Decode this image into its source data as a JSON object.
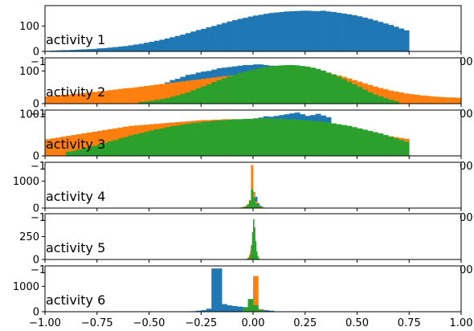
{
  "chart_data": [
    {
      "type": "bar",
      "label": "activity 1",
      "xlim": [
        -1.0,
        1.0
      ],
      "ylim": [
        0,
        180
      ],
      "yticks": [
        "0",
        "100"
      ],
      "overflow_text": {
        "left": "−1",
        "right": "00"
      },
      "bin_width": 0.025,
      "series": [
        {
          "color": "#1f77b4",
          "start": -1.0,
          "values": [
            2,
            3,
            4,
            5,
            5,
            6,
            7,
            8,
            9,
            10,
            12,
            13,
            15,
            17,
            19,
            21,
            24,
            27,
            30,
            34,
            38,
            42,
            46,
            51,
            56,
            61,
            66,
            72,
            78,
            84,
            89,
            95,
            100,
            106,
            112,
            118,
            123,
            128,
            132,
            137,
            141,
            144,
            148,
            151,
            153,
            155,
            157,
            158,
            159,
            160,
            160,
            159,
            158,
            160,
            157,
            155,
            152,
            149,
            146,
            142,
            138,
            133,
            128,
            122,
            116,
            110,
            104,
            97,
            90,
            83
          ]
        }
      ]
    },
    {
      "type": "bar",
      "label": "activity 2",
      "xlim": [
        -1.0,
        1.0
      ],
      "ylim": [
        0,
        140
      ],
      "yticks": [
        "0",
        "100"
      ],
      "overflow_text": {
        "left": "−1",
        "right": "00"
      },
      "bin_width": 0.025,
      "series": [
        {
          "color": "#1f77b4",
          "start": -0.45,
          "values": [
            60,
            65,
            72,
            76,
            82,
            88,
            90,
            95,
            98,
            100,
            104,
            108,
            110,
            112,
            114,
            116,
            118,
            118,
            120,
            120,
            118,
            116,
            114,
            112,
            110,
            106,
            102,
            96,
            90,
            84,
            78,
            72,
            66,
            60,
            55,
            50
          ]
        },
        {
          "color": "#ff7f0e",
          "start": -1.0,
          "values": [
            22,
            24,
            25,
            27,
            28,
            30,
            31,
            33,
            34,
            36,
            38,
            39,
            41,
            43,
            45,
            47,
            48,
            50,
            52,
            54,
            56,
            58,
            60,
            62,
            64,
            66,
            68,
            70,
            72,
            74,
            76,
            78,
            80,
            82,
            84,
            86,
            88,
            90,
            92,
            94,
            96,
            98,
            100,
            102,
            104,
            105,
            106,
            106,
            106,
            105,
            104,
            102,
            100,
            97,
            94,
            90,
            86,
            82,
            77,
            72,
            67,
            62,
            57,
            52,
            48,
            44,
            40,
            37,
            34,
            31,
            29,
            27,
            25,
            24,
            22,
            21,
            20,
            19,
            19,
            18
          ]
        },
        {
          "color": "#2ca02c",
          "start": -0.55,
          "values": [
            5,
            7,
            9,
            11,
            14,
            17,
            21,
            25,
            30,
            35,
            41,
            47,
            53,
            59,
            66,
            72,
            78,
            84,
            89,
            94,
            98,
            102,
            106,
            109,
            112,
            114,
            116,
            117,
            118,
            118,
            117,
            115,
            113,
            110,
            106,
            101,
            95,
            89,
            82,
            75,
            67,
            59,
            51,
            43,
            35,
            28,
            22,
            17,
            12,
            8
          ]
        }
      ]
    },
    {
      "type": "bar",
      "label": "activity 3",
      "xlim": [
        -1.0,
        1.0
      ],
      "ylim": [
        0,
        110
      ],
      "yticks": [
        "0",
        "100"
      ],
      "overflow_text": {
        "left": "−1",
        "right": "00"
      },
      "bin_width": 0.025,
      "series": [
        {
          "color": "#1f77b4",
          "start": 0.0,
          "values": [
            90,
            92,
            95,
            94,
            96,
            98,
            100,
            102,
            104,
            100,
            96,
            98,
            101,
            97,
            93
          ]
        },
        {
          "color": "#ff7f0e",
          "start": -1.0,
          "values": [
            40,
            42,
            44,
            46,
            48,
            50,
            52,
            54,
            56,
            58,
            60,
            62,
            64,
            66,
            68,
            70,
            72,
            73,
            74,
            75,
            76,
            77,
            78,
            79,
            80,
            81,
            82,
            83,
            84,
            85,
            86,
            86,
            87,
            87,
            88,
            88,
            88,
            88,
            88,
            88,
            87,
            87,
            86,
            86,
            85,
            84,
            83,
            82,
            81,
            80,
            79,
            77,
            75,
            73,
            71,
            69,
            67,
            65,
            63,
            61,
            59,
            57,
            55,
            53,
            51,
            49,
            47,
            45,
            43,
            41
          ]
        },
        {
          "color": "#2ca02c",
          "start": -0.9,
          "values": [
            10,
            12,
            15,
            18,
            21,
            24,
            28,
            31,
            35,
            38,
            42,
            45,
            49,
            52,
            55,
            58,
            61,
            64,
            66,
            69,
            71,
            73,
            75,
            77,
            79,
            80,
            82,
            83,
            84,
            85,
            86,
            87,
            88,
            88,
            89,
            89,
            90,
            90,
            90,
            90,
            89,
            89,
            88,
            88,
            87,
            86,
            85,
            84,
            83,
            82,
            80,
            78,
            76,
            74,
            72,
            69,
            66,
            63,
            60,
            57,
            54,
            50,
            46,
            42,
            38,
            34
          ]
        }
      ]
    },
    {
      "type": "bar",
      "label": "activity 4",
      "xlim": [
        -1.0,
        1.0
      ],
      "ylim": [
        0,
        1700
      ],
      "yticks": [
        "0",
        "1000"
      ],
      "overflow_text": {
        "left": "−1",
        "right": "00"
      },
      "bin_width": 0.01,
      "series": [
        {
          "color": "#1f77b4",
          "start": -0.04,
          "values": [
            20,
            40,
            80,
            160,
            400,
            420,
            180,
            90,
            40
          ]
        },
        {
          "color": "#ff7f0e",
          "start": -0.08,
          "values": [
            10,
            20,
            30,
            50,
            80,
            150,
            300,
            1600,
            600,
            250,
            100,
            50,
            30,
            20,
            10,
            8
          ]
        },
        {
          "color": "#2ca02c",
          "start": -0.06,
          "values": [
            10,
            30,
            60,
            120,
            260,
            700,
            400,
            180,
            80,
            40,
            20,
            10
          ]
        }
      ]
    },
    {
      "type": "bar",
      "label": "activity 5",
      "xlim": [
        -1.0,
        1.0
      ],
      "ylim": [
        0,
        500
      ],
      "yticks": [
        "0",
        "250"
      ],
      "overflow_text": {
        "left": "−1",
        "right": "00"
      },
      "bin_width": 0.005,
      "series": [
        {
          "color": "#1f77b4",
          "start": -0.03,
          "values": [
            5,
            10,
            20,
            40,
            80,
            120,
            90,
            50,
            25,
            12,
            6,
            3
          ]
        },
        {
          "color": "#ff7f0e",
          "start": -0.04,
          "values": [
            3,
            6,
            12,
            24,
            50,
            100,
            160,
            200,
            130,
            70,
            35,
            18,
            9,
            4,
            2
          ]
        },
        {
          "color": "#2ca02c",
          "start": -0.03,
          "values": [
            5,
            10,
            25,
            60,
            150,
            300,
            440,
            350,
            200,
            90,
            40,
            15
          ]
        }
      ]
    },
    {
      "type": "bar",
      "label": "activity 6",
      "xlim": [
        -1.0,
        1.0
      ],
      "ylim": [
        0,
        1800
      ],
      "yticks": [
        "0",
        "1000"
      ],
      "overflow_text": {
        "left": "−1",
        "right": "00"
      },
      "bin_width": 0.025,
      "series": [
        {
          "color": "#1f77b4",
          "start": -0.3,
          "values": [
            20,
            40,
            60,
            120,
            1700,
            1700,
            300,
            250,
            220,
            200,
            180,
            150,
            120,
            90,
            60,
            40
          ]
        },
        {
          "color": "#ff7f0e",
          "start": -0.025,
          "values": [
            200,
            1400,
            100
          ]
        },
        {
          "color": "#2ca02c",
          "start": -0.05,
          "values": [
            150,
            500,
            260,
            80
          ]
        }
      ]
    }
  ],
  "x_axis": {
    "ticks": [
      -1.0,
      -0.75,
      -0.5,
      -0.25,
      0.0,
      0.25,
      0.5,
      0.75,
      1.0
    ],
    "tick_labels": [
      "−1.00",
      "−0.75",
      "−0.50",
      "−0.25",
      "0.00",
      "0.25",
      "0.50",
      "0.75",
      "1.00"
    ]
  }
}
